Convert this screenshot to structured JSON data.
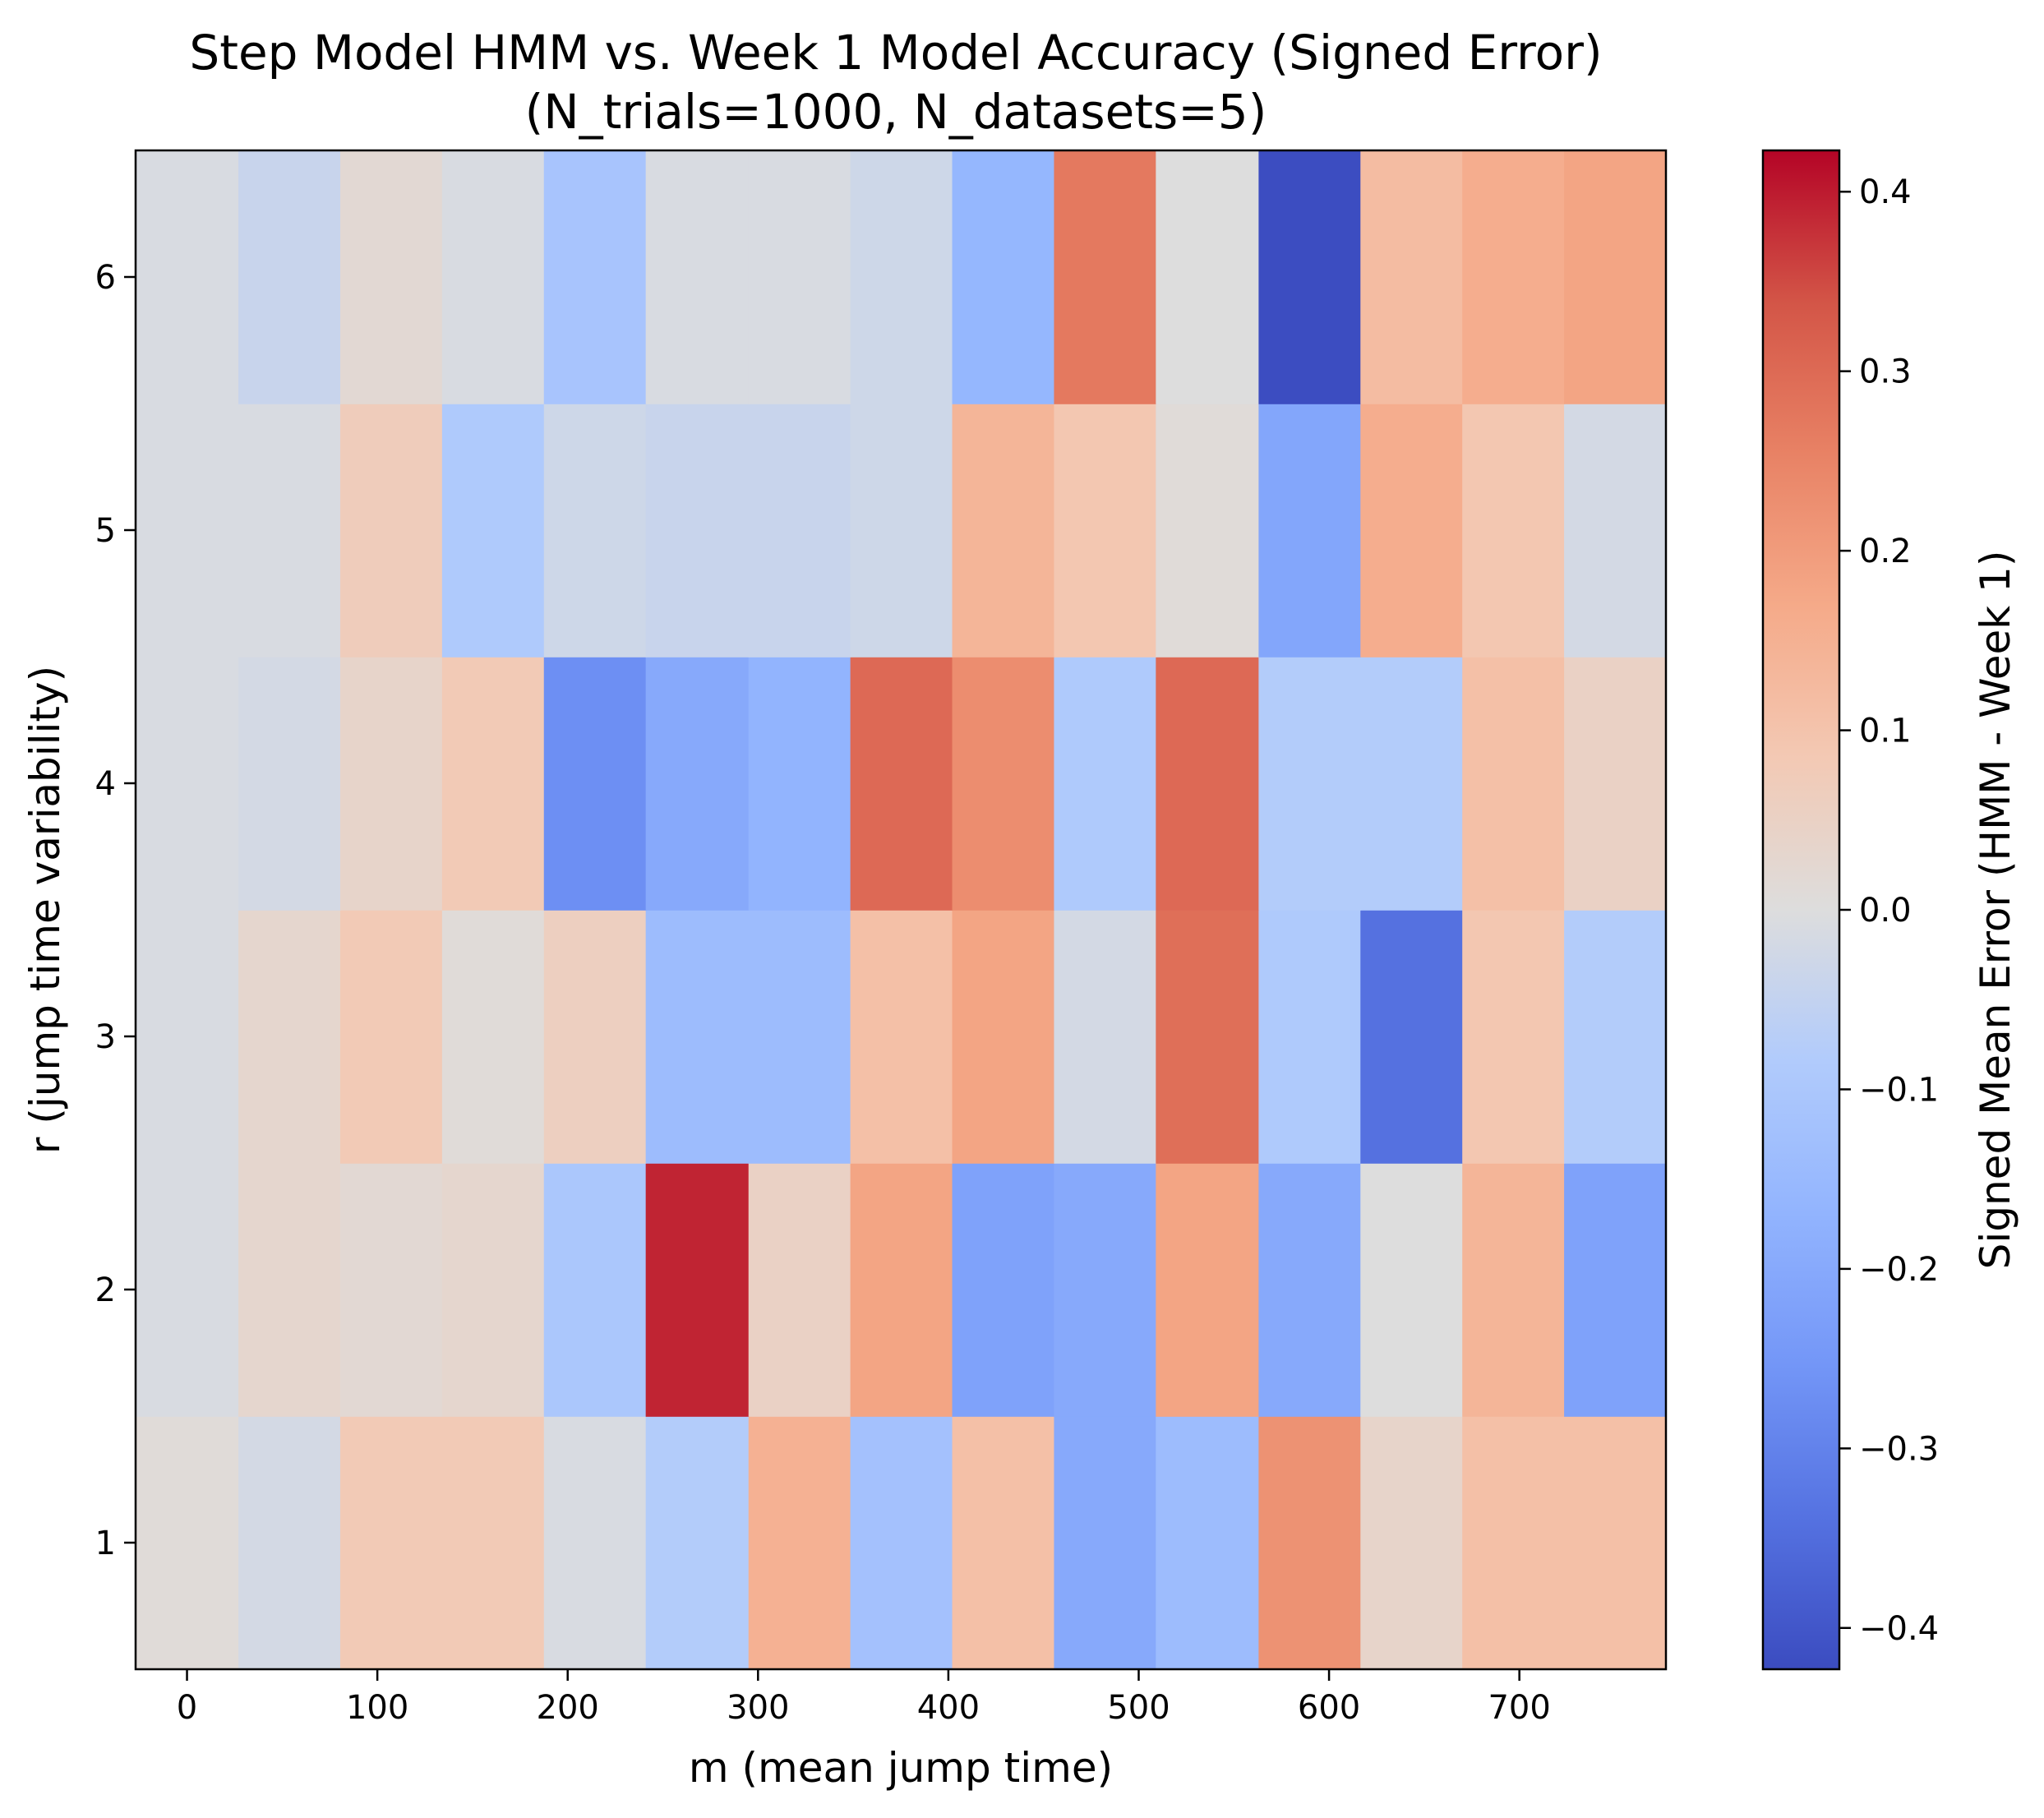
{
  "chart_data": {
    "type": "heatmap",
    "title": "Step Model HMM vs. Week 1 Model Accuracy (Signed Error)",
    "subtitle": "(N_trials=1000, N_datasets=5)",
    "xlabel": "m (mean jump time)",
    "ylabel": "r (jump time variability)",
    "colorbar_label": "Signed Mean Error (HMM - Week 1)",
    "colormap": "coolwarm",
    "x_ticks": [
      "0",
      "100",
      "200",
      "300",
      "400",
      "500",
      "600",
      "700"
    ],
    "y_ticks": [
      "1",
      "2",
      "3",
      "4",
      "5",
      "6"
    ],
    "colorbar_ticks": [
      "−0.4",
      "−0.3",
      "−0.2",
      "−0.1",
      "0.0",
      "0.1",
      "0.2",
      "0.3",
      "0.4"
    ],
    "colorbar_tick_values": [
      -0.4,
      -0.3,
      -0.2,
      -0.1,
      0.0,
      0.1,
      0.2,
      0.3,
      0.4
    ],
    "vmin": -0.423,
    "vmax": 0.423,
    "xlim": [
      -27,
      777
    ],
    "ylim": [
      0.5,
      6.5
    ],
    "x_centers": [
      0,
      54,
      107,
      161,
      214,
      268,
      322,
      375,
      429,
      482,
      536,
      590,
      643,
      697,
      750
    ],
    "y_centers": [
      1,
      2,
      3,
      4,
      5,
      6
    ],
    "values": [
      [
        0.01,
        -0.02,
        0.08,
        0.08,
        -0.01,
        -0.08,
        0.15,
        -0.12,
        0.11,
        -0.2,
        -0.14,
        0.22,
        0.04,
        0.11,
        0.11
      ],
      [
        -0.01,
        0.03,
        0.02,
        0.03,
        -0.1,
        0.39,
        0.05,
        0.18,
        -0.22,
        -0.2,
        0.18,
        -0.2,
        0.0,
        0.14,
        -0.22
      ],
      [
        -0.01,
        0.03,
        0.08,
        0.01,
        0.06,
        -0.14,
        -0.14,
        0.11,
        0.18,
        -0.02,
        0.29,
        -0.09,
        -0.34,
        0.09,
        -0.08
      ],
      [
        -0.01,
        -0.02,
        0.04,
        0.08,
        -0.27,
        -0.2,
        -0.17,
        0.3,
        0.23,
        -0.09,
        0.3,
        -0.08,
        -0.08,
        0.11,
        0.05
      ],
      [
        -0.01,
        -0.01,
        0.07,
        -0.09,
        -0.03,
        -0.04,
        -0.04,
        -0.03,
        0.14,
        0.09,
        0.01,
        -0.21,
        0.16,
        0.09,
        -0.02
      ],
      [
        -0.01,
        -0.04,
        0.02,
        -0.01,
        -0.11,
        -0.01,
        -0.01,
        -0.03,
        -0.16,
        0.27,
        0.0,
        -0.42,
        0.12,
        0.16,
        0.18
      ]
    ]
  }
}
